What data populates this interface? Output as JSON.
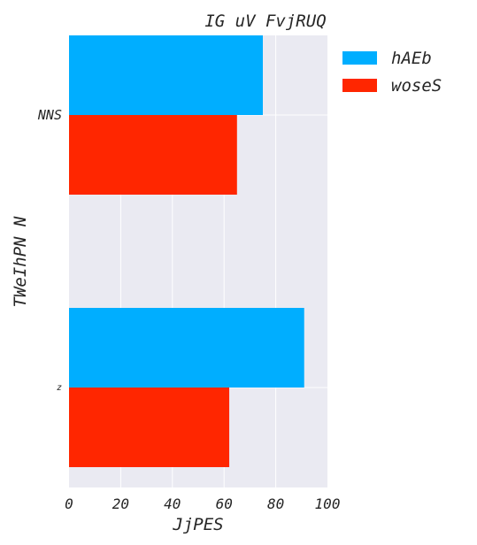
{
  "chart_data": {
    "type": "bar",
    "orientation": "horizontal",
    "title": "IG uV FvjRUQ",
    "xlabel": "JjPES",
    "ylabel": "TWeIhPN N",
    "xlim": [
      0,
      100
    ],
    "xticks": [
      0,
      20,
      40,
      60,
      80,
      100
    ],
    "categories": [
      "NNS",
      "z"
    ],
    "series": [
      {
        "name": "hAEb",
        "color": "#00AEFF",
        "values": [
          75,
          91
        ]
      },
      {
        "name": "woseS",
        "color": "#FF2600",
        "values": [
          65,
          62
        ]
      }
    ],
    "grid": true,
    "legend_position": "outside-top-right"
  }
}
